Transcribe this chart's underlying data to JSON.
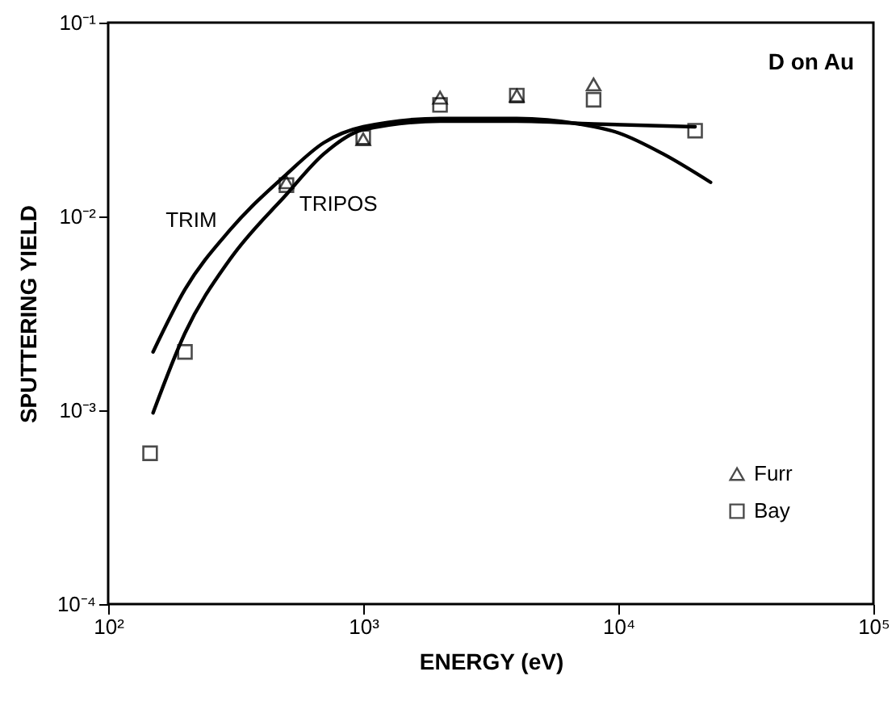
{
  "chart_data": {
    "type": "scatter",
    "xlabel": "ENERGY (eV)",
    "ylabel": "SPUTTERING YIELD",
    "annotations": [
      "D on Au"
    ],
    "log": "xy",
    "grid": false,
    "legend": "bottom right",
    "xlim": [
      100,
      100000
    ],
    "xticks": [
      {
        "value": 100,
        "label": "10²"
      },
      {
        "value": 1000,
        "label": "10³"
      },
      {
        "value": 10000,
        "label": "10⁴"
      },
      {
        "value": 100000,
        "label": "10⁵"
      }
    ],
    "ylim": [
      0.0001,
      0.1
    ],
    "yticks": [
      {
        "value": 0.0001,
        "label": "10⁻⁴"
      },
      {
        "value": 0.001,
        "label": "10⁻³"
      },
      {
        "value": 0.01,
        "label": "10⁻²"
      },
      {
        "value": 0.1,
        "label": "10⁻¹"
      }
    ],
    "series": [
      {
        "name": "TRIM",
        "type": "line",
        "color": "#000000",
        "line_style": "solid",
        "x": [
          150,
          200,
          300,
          500,
          700,
          1000,
          2000,
          4000,
          7000,
          10000,
          15000,
          23000
        ],
        "values": [
          0.002,
          0.0042,
          0.0085,
          0.0165,
          0.024,
          0.029,
          0.032,
          0.032,
          0.03,
          0.027,
          0.021,
          0.015
        ]
      },
      {
        "name": "TRIPOS",
        "type": "line",
        "color": "#000000",
        "line_style": "solid",
        "x": [
          150,
          200,
          300,
          500,
          700,
          1000,
          2000,
          4000,
          8000,
          20000
        ],
        "values": [
          0.00097,
          0.0025,
          0.006,
          0.013,
          0.021,
          0.028,
          0.031,
          0.031,
          0.03,
          0.029
        ]
      },
      {
        "name": "Furr",
        "marker": "triangle",
        "color": "#000000",
        "x": [
          500,
          1000,
          2000,
          4000,
          8000
        ],
        "values": [
          0.015,
          0.025,
          0.041,
          0.042,
          0.048
        ]
      },
      {
        "name": "Bay",
        "marker": "square",
        "color": "#000000",
        "x": [
          146,
          200,
          500,
          1000,
          2000,
          4000,
          8000,
          20000
        ],
        "values": [
          0.0006,
          0.002,
          0.0145,
          0.0256,
          0.0376,
          0.042,
          0.04,
          0.0277
        ]
      }
    ]
  }
}
